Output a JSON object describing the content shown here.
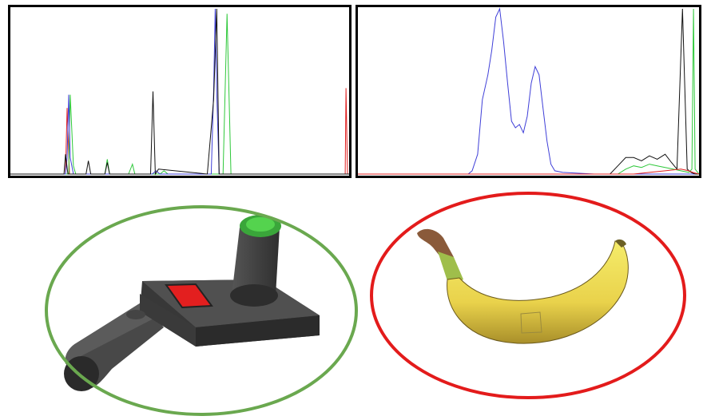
{
  "colors": {
    "red": "#e02020",
    "green": "#2ec83a",
    "blue": "#3f3fd8",
    "black": "#111111",
    "ellipse_left": "#6aa84f",
    "ellipse_right": "#e31b1b"
  },
  "chart_data": [
    {
      "type": "line",
      "xlim": [
        0,
        430
      ],
      "ylim": [
        0,
        1
      ],
      "grid": false,
      "series": [
        {
          "color": "red",
          "x": [
            0,
            70,
            72,
            75,
            78,
            100,
            150,
            180,
            425,
            426,
            428,
            430
          ],
          "y": [
            0,
            0,
            0.4,
            0,
            0,
            0,
            0,
            0,
            0,
            0.52,
            0,
            0
          ]
        },
        {
          "color": "green",
          "x": [
            0,
            74,
            76,
            80,
            83,
            90,
            100,
            120,
            123,
            126,
            150,
            155,
            158,
            190,
            195,
            200,
            260,
            270,
            275,
            280,
            430
          ],
          "y": [
            0,
            0,
            0.48,
            0.05,
            0,
            0,
            0,
            0,
            0.09,
            0,
            0,
            0.06,
            0,
            0,
            0.02,
            0,
            0,
            0,
            0.97,
            0,
            0
          ]
        },
        {
          "color": "blue",
          "x": [
            0,
            70,
            72,
            74,
            76,
            80,
            100,
            180,
            185,
            190,
            255,
            258,
            260,
            262,
            265,
            430
          ],
          "y": [
            0,
            0,
            0.1,
            0.48,
            0.1,
            0,
            0,
            0,
            0.02,
            0,
            0,
            0.5,
            1.0,
            0.5,
            0,
            0
          ]
        },
        {
          "color": "black",
          "x": [
            0,
            68,
            70,
            73,
            76,
            96,
            99,
            102,
            120,
            123,
            126,
            178,
            181,
            184,
            188,
            250,
            258,
            262,
            265,
            430
          ],
          "y": [
            0,
            0,
            0.12,
            0,
            0,
            0,
            0.08,
            0,
            0,
            0.07,
            0,
            0,
            0.5,
            0,
            0.03,
            0,
            0.45,
            1.0,
            0,
            0
          ]
        }
      ]
    },
    {
      "type": "line",
      "xlim": [
        0,
        433
      ],
      "ylim": [
        0,
        1
      ],
      "grid": false,
      "series": [
        {
          "color": "blue",
          "x": [
            0,
            140,
            145,
            152,
            158,
            165,
            170,
            175,
            180,
            185,
            190,
            195,
            200,
            205,
            210,
            215,
            220,
            225,
            230,
            235,
            240,
            245,
            250,
            260,
            300,
            433
          ],
          "y": [
            0,
            0,
            0.02,
            0.12,
            0.45,
            0.6,
            0.75,
            0.95,
            1.0,
            0.8,
            0.55,
            0.32,
            0.28,
            0.3,
            0.25,
            0.35,
            0.55,
            0.65,
            0.6,
            0.4,
            0.2,
            0.06,
            0.02,
            0.01,
            0,
            0
          ]
        },
        {
          "color": "black",
          "x": [
            0,
            320,
            330,
            340,
            350,
            360,
            370,
            380,
            390,
            398,
            405,
            412,
            418,
            423,
            428,
            433
          ],
          "y": [
            0,
            0,
            0.05,
            0.1,
            0.1,
            0.08,
            0.11,
            0.09,
            0.12,
            0.07,
            0.03,
            1.0,
            0.03,
            0.01,
            0,
            0
          ]
        },
        {
          "color": "green",
          "x": [
            0,
            330,
            340,
            350,
            360,
            370,
            380,
            390,
            400,
            410,
            420,
            424,
            426,
            428,
            433
          ],
          "y": [
            0,
            0,
            0.03,
            0.05,
            0.04,
            0.06,
            0.05,
            0.04,
            0.03,
            0.02,
            0.01,
            0.03,
            1.0,
            0.03,
            0
          ]
        },
        {
          "color": "red",
          "x": [
            0,
            350,
            370,
            390,
            410,
            420,
            425,
            433
          ],
          "y": [
            0,
            0,
            0.01,
            0.02,
            0.03,
            0.02,
            0.01,
            0
          ]
        }
      ]
    }
  ]
}
